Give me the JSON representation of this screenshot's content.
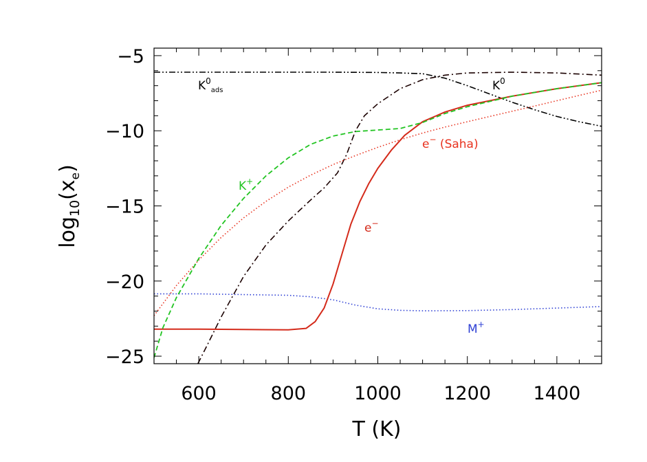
{
  "chart_data": {
    "type": "line",
    "title": "",
    "xlabel": "T (K)",
    "ylabel": "log10(xe)",
    "ylabel_parts": {
      "main": "log",
      "sub": "10",
      "open": "(",
      "var": "x",
      "var_sub": "e",
      "close": ")"
    },
    "xlim": [
      500,
      1500
    ],
    "ylim": [
      -25.5,
      -4.5
    ],
    "x_ticks": [
      600,
      800,
      1000,
      1200,
      1400
    ],
    "x_tick_labels": [
      "600",
      "800",
      "1000",
      "1200",
      "1400"
    ],
    "y_ticks": [
      -25,
      -20,
      -15,
      -10,
      -5
    ],
    "y_tick_labels": [
      "−25",
      "−20",
      "−15",
      "−10",
      "−5"
    ],
    "grid": false,
    "legend": "none (curves labelled inline)",
    "series": [
      {
        "name": "K0ads",
        "label_main": "K",
        "label_sup": "0",
        "label_sub": "ads",
        "color": "#000000",
        "style": "dash-dot-dot",
        "points": [
          [
            500,
            -6.1
          ],
          [
            700,
            -6.1
          ],
          [
            900,
            -6.1
          ],
          [
            1000,
            -6.12
          ],
          [
            1050,
            -6.15
          ],
          [
            1100,
            -6.2
          ],
          [
            1150,
            -6.5
          ],
          [
            1200,
            -7.0
          ],
          [
            1250,
            -7.55
          ],
          [
            1300,
            -8.1
          ],
          [
            1350,
            -8.6
          ],
          [
            1400,
            -9.05
          ],
          [
            1450,
            -9.4
          ],
          [
            1500,
            -9.7
          ]
        ]
      },
      {
        "name": "K0",
        "label_main": "K",
        "label_sup": "0",
        "color": "#1a0000",
        "style": "dash-dot",
        "points": [
          [
            598,
            -25.5
          ],
          [
            620,
            -24.2
          ],
          [
            650,
            -22.4
          ],
          [
            700,
            -19.7
          ],
          [
            750,
            -17.6
          ],
          [
            800,
            -16.0
          ],
          [
            850,
            -14.6
          ],
          [
            880,
            -13.8
          ],
          [
            910,
            -12.8
          ],
          [
            930,
            -11.6
          ],
          [
            950,
            -10.0
          ],
          [
            970,
            -9.0
          ],
          [
            1000,
            -8.2
          ],
          [
            1050,
            -7.2
          ],
          [
            1100,
            -6.6
          ],
          [
            1150,
            -6.3
          ],
          [
            1200,
            -6.15
          ],
          [
            1300,
            -6.1
          ],
          [
            1400,
            -6.15
          ],
          [
            1500,
            -6.3
          ]
        ]
      },
      {
        "name": "e- (Saha)",
        "label_main": "e",
        "label_sup": "−",
        "label_rest": " (Saha)",
        "color": "#e8321e",
        "style": "dotted",
        "points": [
          [
            500,
            -22.3
          ],
          [
            550,
            -20.3
          ],
          [
            600,
            -18.6
          ],
          [
            650,
            -17.1
          ],
          [
            700,
            -15.8
          ],
          [
            750,
            -14.7
          ],
          [
            800,
            -13.75
          ],
          [
            850,
            -12.95
          ],
          [
            900,
            -12.25
          ],
          [
            950,
            -11.65
          ],
          [
            1000,
            -11.1
          ],
          [
            1050,
            -10.6
          ],
          [
            1100,
            -10.15
          ],
          [
            1150,
            -9.75
          ],
          [
            1200,
            -9.4
          ],
          [
            1250,
            -9.05
          ],
          [
            1300,
            -8.7
          ],
          [
            1350,
            -8.35
          ],
          [
            1400,
            -8.0
          ],
          [
            1450,
            -7.65
          ],
          [
            1500,
            -7.3
          ]
        ]
      },
      {
        "name": "K+",
        "label_main": "K",
        "label_sup": "+",
        "color": "#22c422",
        "style": "dashed",
        "points": [
          [
            500,
            -25.1
          ],
          [
            520,
            -23.1
          ],
          [
            550,
            -21.1
          ],
          [
            600,
            -18.5
          ],
          [
            650,
            -16.3
          ],
          [
            700,
            -14.5
          ],
          [
            750,
            -13.0
          ],
          [
            800,
            -11.8
          ],
          [
            850,
            -10.9
          ],
          [
            900,
            -10.35
          ],
          [
            950,
            -10.05
          ],
          [
            1000,
            -9.95
          ],
          [
            1050,
            -9.85
          ],
          [
            1100,
            -9.45
          ],
          [
            1150,
            -8.85
          ],
          [
            1200,
            -8.4
          ],
          [
            1300,
            -7.7
          ],
          [
            1400,
            -7.2
          ],
          [
            1500,
            -6.8
          ]
        ]
      },
      {
        "name": "e-",
        "label_main": "e",
        "label_sup": "−",
        "color": "#d42a1a",
        "style": "solid",
        "points": [
          [
            500,
            -23.2
          ],
          [
            600,
            -23.2
          ],
          [
            700,
            -23.22
          ],
          [
            800,
            -23.25
          ],
          [
            840,
            -23.15
          ],
          [
            860,
            -22.7
          ],
          [
            880,
            -21.8
          ],
          [
            900,
            -20.2
          ],
          [
            920,
            -18.2
          ],
          [
            940,
            -16.2
          ],
          [
            960,
            -14.7
          ],
          [
            980,
            -13.5
          ],
          [
            1000,
            -12.5
          ],
          [
            1030,
            -11.3
          ],
          [
            1060,
            -10.3
          ],
          [
            1100,
            -9.4
          ],
          [
            1150,
            -8.75
          ],
          [
            1200,
            -8.3
          ],
          [
            1300,
            -7.7
          ],
          [
            1400,
            -7.2
          ],
          [
            1500,
            -6.8
          ]
        ]
      },
      {
        "name": "M+",
        "label_main": "M",
        "label_sup": "+",
        "color": "#2d3fd4",
        "style": "dotted",
        "points": [
          [
            500,
            -20.85
          ],
          [
            600,
            -20.85
          ],
          [
            700,
            -20.9
          ],
          [
            800,
            -20.95
          ],
          [
            850,
            -21.05
          ],
          [
            900,
            -21.25
          ],
          [
            950,
            -21.6
          ],
          [
            1000,
            -21.85
          ],
          [
            1050,
            -21.95
          ],
          [
            1100,
            -21.98
          ],
          [
            1200,
            -21.97
          ],
          [
            1300,
            -21.9
          ],
          [
            1400,
            -21.8
          ],
          [
            1500,
            -21.7
          ]
        ]
      }
    ]
  }
}
